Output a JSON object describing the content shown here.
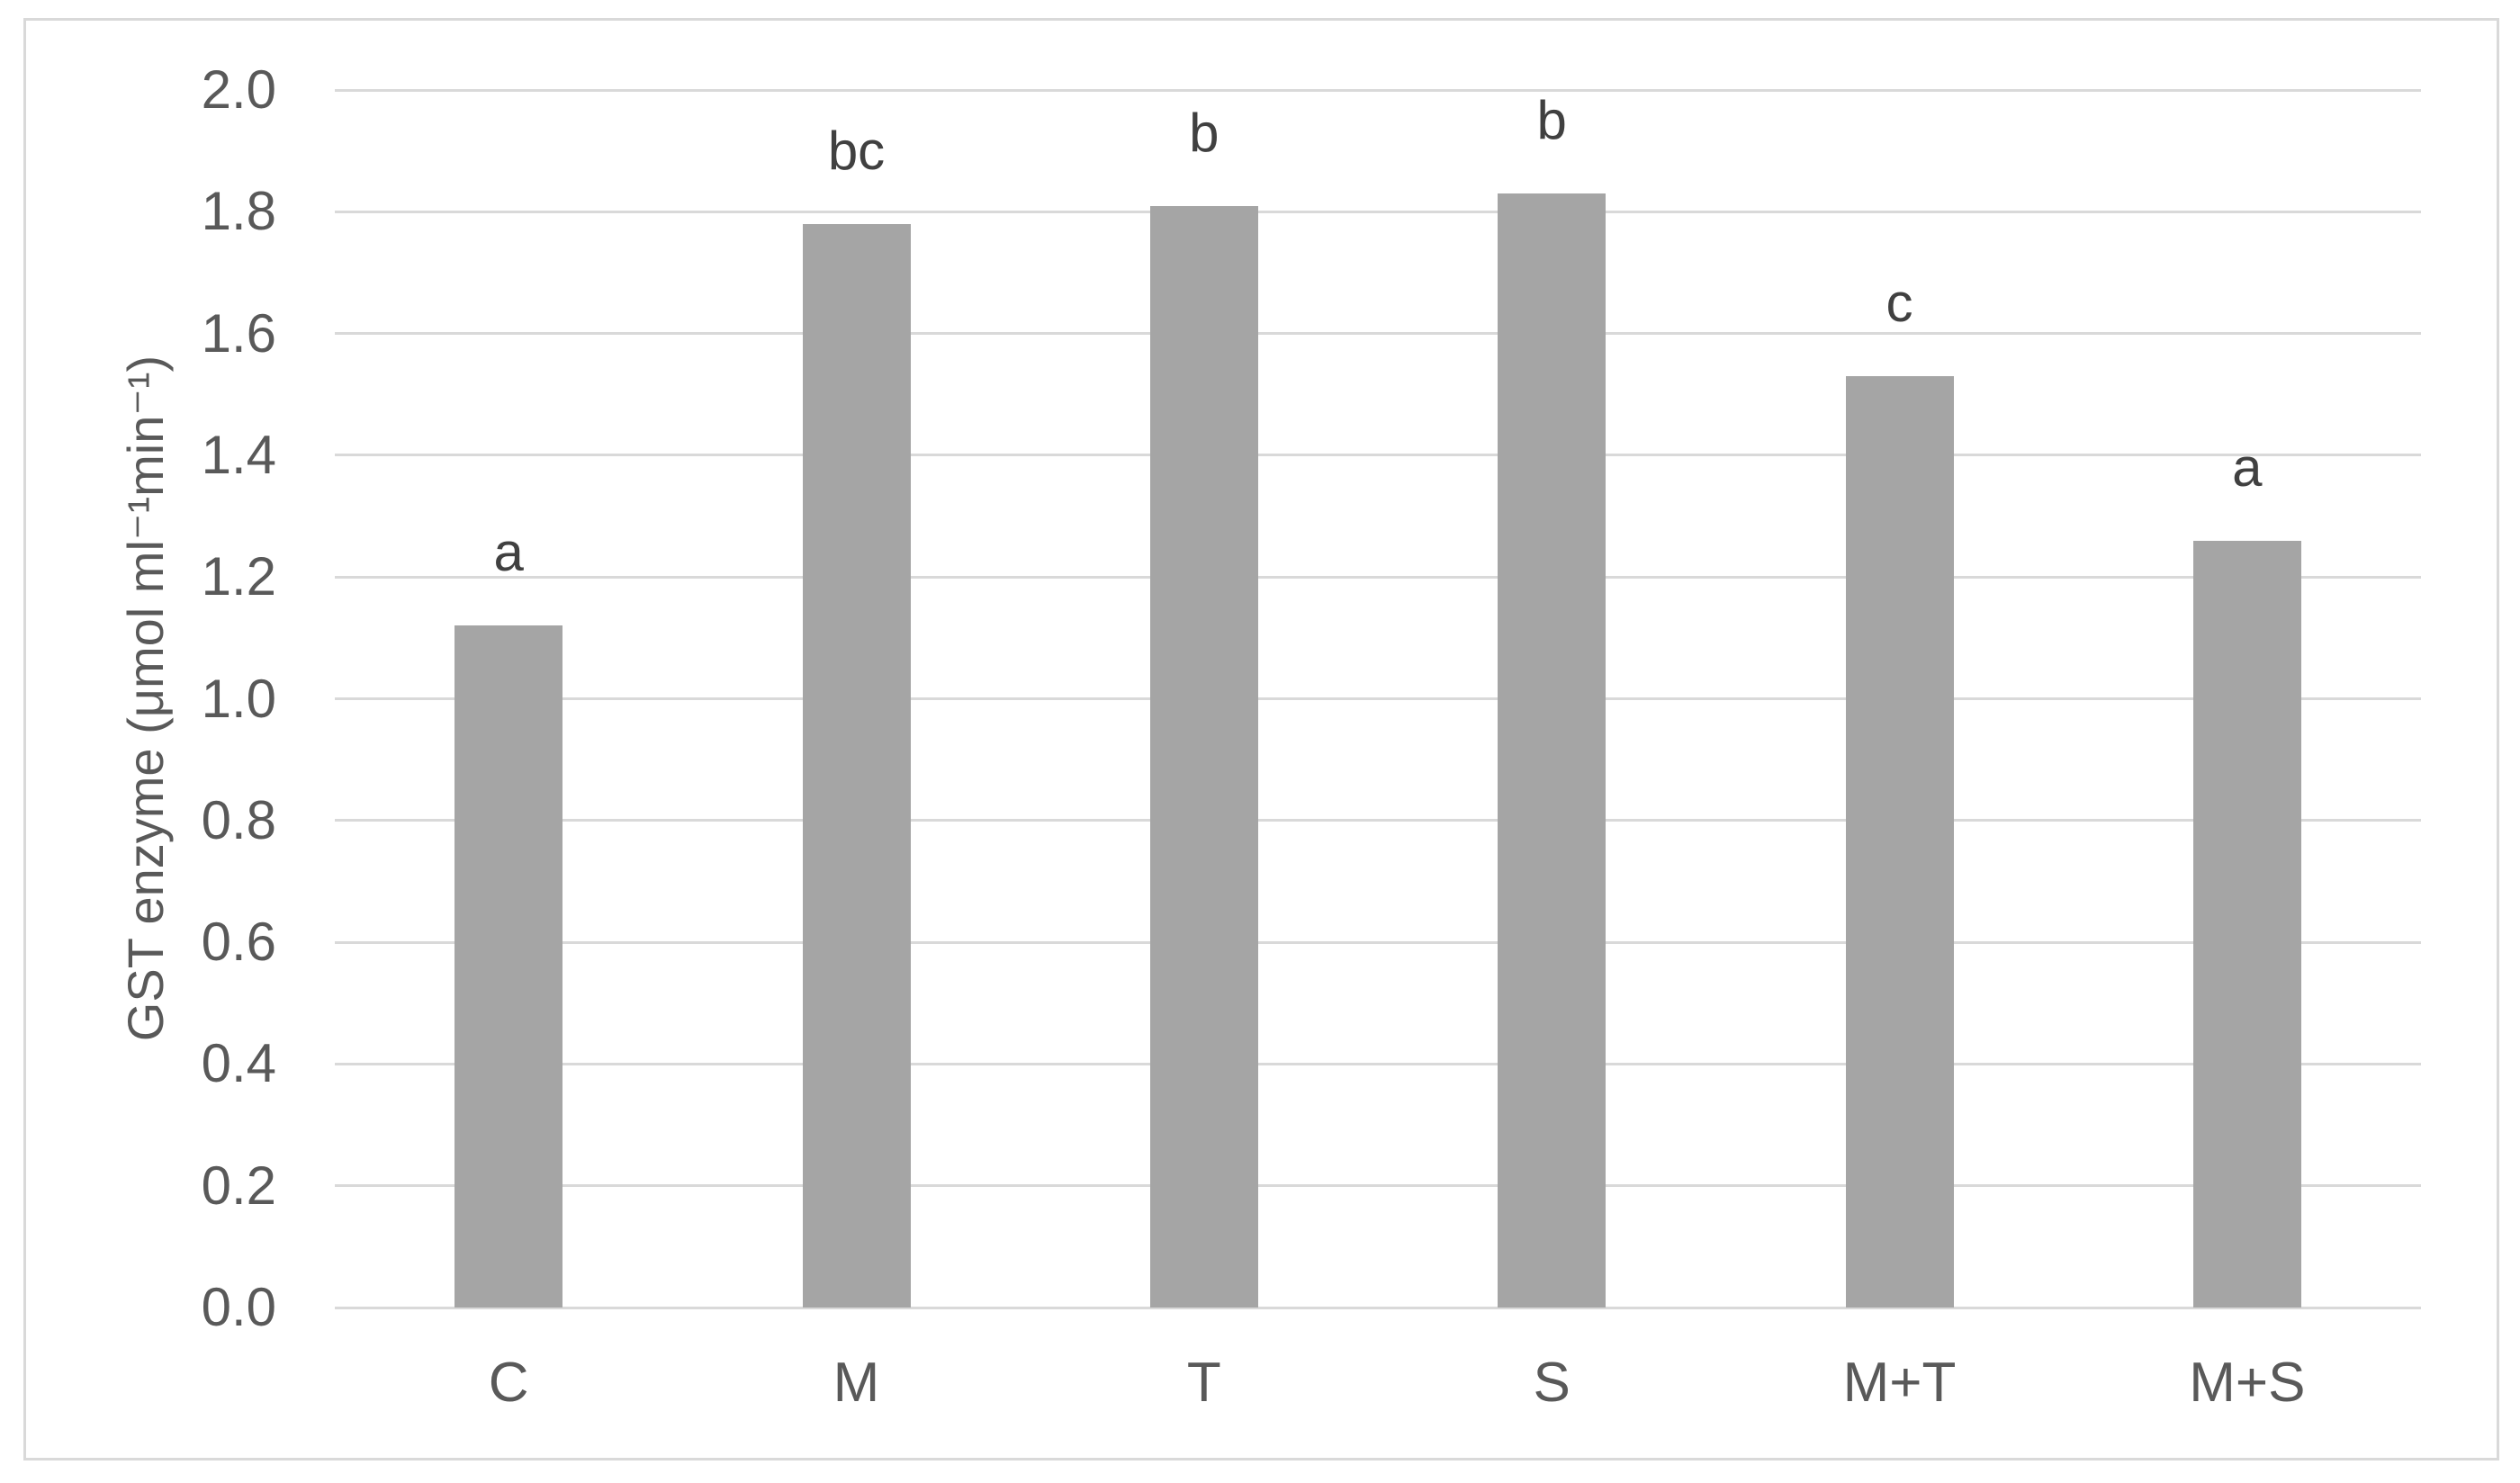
{
  "chart_data": {
    "type": "bar",
    "title": "",
    "xlabel": "",
    "ylabel": "GST enzyme (μmol ml⁻¹min⁻¹)",
    "categories": [
      "C",
      "M",
      "T",
      "S",
      "M+T",
      "M+S"
    ],
    "values": [
      1.12,
      1.78,
      1.81,
      1.83,
      1.53,
      1.26
    ],
    "significance_letters": [
      "a",
      "bc",
      "b",
      "b",
      "c",
      "a"
    ],
    "ylim": [
      0.0,
      2.0
    ],
    "ytick_step": 0.2,
    "ytick_labels": [
      "0.0",
      "0.2",
      "0.4",
      "0.6",
      "0.8",
      "1.0",
      "1.2",
      "1.4",
      "1.6",
      "1.8",
      "2.0"
    ],
    "grid": "horizontal",
    "legend": "none",
    "colors": {
      "bar_fill": "#a5a5a5",
      "gridline": "#d9d9d9",
      "chart_border": "#d9d9d9",
      "axis_text": "#595959",
      "letter_text": "#404040",
      "background": "#ffffff"
    }
  }
}
